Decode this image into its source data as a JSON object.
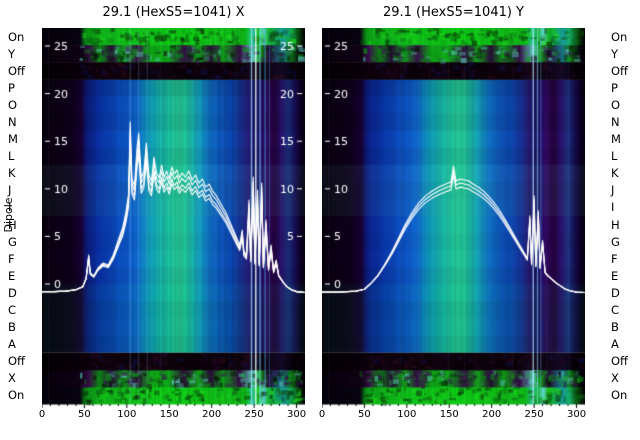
{
  "chart_data": {
    "type": "heatmap",
    "axis_label_left": "Dipole",
    "row_labels": [
      "On",
      "Y",
      "Off",
      "P",
      "O",
      "N",
      "M",
      "L",
      "K",
      "J",
      "I",
      "H",
      "G",
      "F",
      "E",
      "D",
      "C",
      "B",
      "A",
      "Off",
      "X",
      "On"
    ],
    "x_range": [
      0,
      310
    ],
    "xticks": [
      0,
      50,
      100,
      150,
      200,
      250,
      300
    ],
    "yticks": [
      0,
      5,
      10,
      15,
      20,
      25
    ],
    "inner_left_ticks": [
      25,
      20,
      15,
      10,
      5,
      0
    ],
    "row_shades": [
      0.12,
      0.04,
      0.08,
      0.0,
      0.06,
      0.0,
      0.05,
      0.02,
      0.0,
      0.03,
      0.0,
      0.05,
      0.02,
      0.08,
      0.05,
      0.1
    ],
    "bands": {
      "on": [
        [
          0,
          "#05000a"
        ],
        [
          45,
          "#090512"
        ],
        [
          52,
          "#0c9a16"
        ],
        [
          70,
          "#10ba1a"
        ],
        [
          95,
          "#12c41c"
        ],
        [
          130,
          "#10ca18"
        ],
        [
          160,
          "#0ed216"
        ],
        [
          190,
          "#10c818"
        ],
        [
          220,
          "#12c01a"
        ],
        [
          240,
          "#0eba18"
        ],
        [
          249,
          "#2ed2b2"
        ],
        [
          254,
          "#10c222"
        ],
        [
          261,
          "#64e2d2"
        ],
        [
          267,
          "#10ba1c"
        ],
        [
          284,
          "#18a2a2"
        ],
        [
          292,
          "#14b062"
        ],
        [
          301,
          "#0a5c12"
        ],
        [
          307,
          "#071407"
        ],
        [
          310,
          "#05000a"
        ]
      ],
      "mottled": [
        [
          0,
          "#07000b"
        ],
        [
          47,
          "#110316"
        ],
        [
          55,
          "#380e48"
        ],
        [
          68,
          "#0e8816"
        ],
        [
          82,
          "#280e38"
        ],
        [
          97,
          "#12a21c"
        ],
        [
          112,
          "#381148"
        ],
        [
          128,
          "#10a818"
        ],
        [
          148,
          "#0fb21a"
        ],
        [
          168,
          "#321042"
        ],
        [
          184,
          "#12a41a"
        ],
        [
          199,
          "#280c36"
        ],
        [
          214,
          "#10a018"
        ],
        [
          233,
          "#360e46"
        ],
        [
          249,
          "#62d2c2"
        ],
        [
          257,
          "#12a018"
        ],
        [
          267,
          "#280c36"
        ],
        [
          283,
          "#1a7c8c"
        ],
        [
          294,
          "#0f6c16"
        ],
        [
          304,
          "#090410"
        ],
        [
          310,
          "#06000a"
        ]
      ],
      "off": [
        [
          0,
          "#040004"
        ],
        [
          50,
          "#0b020b"
        ],
        [
          80,
          "#13030f"
        ],
        [
          110,
          "#0b0209"
        ],
        [
          140,
          "#11040f"
        ],
        [
          170,
          "#090207"
        ],
        [
          200,
          "#0f030d"
        ],
        [
          230,
          "#0b0209"
        ],
        [
          248,
          "#180a1e"
        ],
        [
          258,
          "#0d030f"
        ],
        [
          283,
          "#130a28"
        ],
        [
          298,
          "#070107"
        ],
        [
          310,
          "#030003"
        ]
      ],
      "main": [
        [
          0,
          "#08000f"
        ],
        [
          34,
          "#10001e"
        ],
        [
          47,
          "#180336"
        ],
        [
          52,
          "#0f1a7e"
        ],
        [
          60,
          "#0a2a9a"
        ],
        [
          72,
          "#0a3ab2"
        ],
        [
          85,
          "#0c4ac2"
        ],
        [
          100,
          "#0e5ace"
        ],
        [
          112,
          "#106ad2"
        ],
        [
          124,
          "#109cc8"
        ],
        [
          137,
          "#16b4b2"
        ],
        [
          150,
          "#1ec6a2"
        ],
        [
          162,
          "#26ce98"
        ],
        [
          173,
          "#1ec0a4"
        ],
        [
          186,
          "#149ec4"
        ],
        [
          198,
          "#1072ca"
        ],
        [
          210,
          "#0e5ac2"
        ],
        [
          222,
          "#0c4ab6"
        ],
        [
          233,
          "#16389e"
        ],
        [
          243,
          "#261e7a"
        ],
        [
          252,
          "#1a146a"
        ],
        [
          259,
          "#2a0e72"
        ],
        [
          266,
          "#32085e"
        ],
        [
          274,
          "#250340"
        ],
        [
          282,
          "#2a1472"
        ],
        [
          290,
          "#1e3282"
        ],
        [
          298,
          "#170e56"
        ],
        [
          305,
          "#0d0226"
        ],
        [
          310,
          "#080010"
        ]
      ]
    },
    "panels": [
      {
        "title": "29.1 (HexS5=1041) X",
        "inner_right_ticks": [
          25,
          20,
          15,
          10,
          5
        ],
        "trace_scales": [
          1.0,
          0.94,
          1.05,
          0.9
        ],
        "streaks": [
          [
            104,
            "#aef0ff",
            1,
            0.25
          ],
          [
            114,
            "#aef0ff",
            1,
            0.22
          ],
          [
            124,
            "#aef0ff",
            1,
            0.18
          ],
          [
            247,
            "#9fdcff",
            1.4,
            0.75
          ],
          [
            252,
            "#eaffff",
            1.4,
            0.9
          ],
          [
            257,
            "#7fe8ff",
            1.2,
            0.7
          ],
          [
            263,
            "#58c8ff",
            1.2,
            0.55
          ],
          [
            268,
            "#3ea0e0",
            1,
            0.4
          ]
        ],
        "line": [
          [
            0,
            -0.8
          ],
          [
            14,
            -0.8
          ],
          [
            28,
            -0.75
          ],
          [
            40,
            -0.6
          ],
          [
            48,
            -0.3
          ],
          [
            52,
            0.6
          ],
          [
            55,
            2.9
          ],
          [
            57,
            1.1
          ],
          [
            61,
            0.8
          ],
          [
            66,
            1.6
          ],
          [
            72,
            2.1
          ],
          [
            78,
            1.9
          ],
          [
            84,
            2.9
          ],
          [
            90,
            4.4
          ],
          [
            95,
            5.6
          ],
          [
            99,
            7.2
          ],
          [
            102,
            9.0
          ],
          [
            104,
            16.2
          ],
          [
            106,
            10.5
          ],
          [
            109,
            9.8
          ],
          [
            112,
            13.6
          ],
          [
            114,
            15.1
          ],
          [
            117,
            10.6
          ],
          [
            120,
            11.2
          ],
          [
            123,
            14.1
          ],
          [
            126,
            10.9
          ],
          [
            129,
            10.3
          ],
          [
            132,
            12.7
          ],
          [
            135,
            11.1
          ],
          [
            138,
            10.6
          ],
          [
            141,
            11.9
          ],
          [
            144,
            10.7
          ],
          [
            147,
            11.3
          ],
          [
            150,
            10.5
          ],
          [
            153,
            11.7
          ],
          [
            156,
            11.0
          ],
          [
            159,
            11.4
          ],
          [
            162,
            10.6
          ],
          [
            165,
            11.1
          ],
          [
            169,
            10.7
          ],
          [
            173,
            11.3
          ],
          [
            177,
            10.4
          ],
          [
            181,
            10.9
          ],
          [
            185,
            10.1
          ],
          [
            189,
            10.5
          ],
          [
            193,
            9.7
          ],
          [
            197,
            10.0
          ],
          [
            201,
            9.3
          ],
          [
            205,
            8.9
          ],
          [
            209,
            8.3
          ],
          [
            213,
            7.7
          ],
          [
            217,
            7.1
          ],
          [
            221,
            6.3
          ],
          [
            225,
            5.5
          ],
          [
            229,
            4.7
          ],
          [
            233,
            3.9
          ],
          [
            236,
            5.4
          ],
          [
            238,
            3.3
          ],
          [
            241,
            2.9
          ],
          [
            244,
            8.4
          ],
          [
            246,
            2.6
          ],
          [
            249,
            10.7
          ],
          [
            251,
            2.3
          ],
          [
            254,
            9.4
          ],
          [
            256,
            2.1
          ],
          [
            259,
            10.1
          ],
          [
            261,
            1.9
          ],
          [
            264,
            6.4
          ],
          [
            267,
            1.6
          ],
          [
            270,
            3.9
          ],
          [
            273,
            1.3
          ],
          [
            276,
            2.4
          ],
          [
            279,
            0.9
          ],
          [
            282,
            0.5
          ],
          [
            285,
            0.1
          ],
          [
            289,
            -0.3
          ],
          [
            294,
            -0.6
          ],
          [
            300,
            -0.8
          ],
          [
            310,
            -0.9
          ],
          [
            320,
            -0.9
          ]
        ]
      },
      {
        "title": "29.1 (HexS5=1041) Y",
        "inner_right_ticks": [],
        "trace_scales": [
          1.0,
          0.96,
          1.04
        ],
        "streaks": [
          [
            249,
            "#bfe8ff",
            1.4,
            0.7
          ],
          [
            254,
            "#8fd8ff",
            1.2,
            0.6
          ],
          [
            258,
            "#60b8f0",
            1,
            0.45
          ]
        ],
        "line": [
          [
            0,
            -0.85
          ],
          [
            20,
            -0.85
          ],
          [
            40,
            -0.75
          ],
          [
            50,
            -0.55
          ],
          [
            58,
            0.1
          ],
          [
            66,
            0.9
          ],
          [
            74,
            2.0
          ],
          [
            82,
            3.2
          ],
          [
            90,
            4.6
          ],
          [
            98,
            6.0
          ],
          [
            106,
            7.2
          ],
          [
            114,
            8.2
          ],
          [
            122,
            8.9
          ],
          [
            130,
            9.4
          ],
          [
            138,
            9.8
          ],
          [
            146,
            10.1
          ],
          [
            152,
            10.3
          ],
          [
            155,
            11.9
          ],
          [
            158,
            10.4
          ],
          [
            163,
            10.6
          ],
          [
            168,
            10.5
          ],
          [
            173,
            10.4
          ],
          [
            178,
            10.1
          ],
          [
            184,
            9.8
          ],
          [
            190,
            9.4
          ],
          [
            196,
            8.9
          ],
          [
            202,
            8.3
          ],
          [
            208,
            7.6
          ],
          [
            214,
            6.8
          ],
          [
            220,
            5.9
          ],
          [
            226,
            5.0
          ],
          [
            232,
            4.1
          ],
          [
            238,
            3.2
          ],
          [
            242,
            2.6
          ],
          [
            245,
            6.9
          ],
          [
            247,
            2.1
          ],
          [
            250,
            8.9
          ],
          [
            252,
            1.9
          ],
          [
            255,
            7.4
          ],
          [
            257,
            1.7
          ],
          [
            260,
            4.4
          ],
          [
            263,
            1.2
          ],
          [
            267,
            0.8
          ],
          [
            271,
            0.5
          ],
          [
            276,
            0.1
          ],
          [
            281,
            -0.2
          ],
          [
            286,
            -0.5
          ],
          [
            292,
            -0.7
          ],
          [
            300,
            -0.85
          ],
          [
            310,
            -0.9
          ],
          [
            320,
            -0.9
          ]
        ]
      }
    ]
  }
}
